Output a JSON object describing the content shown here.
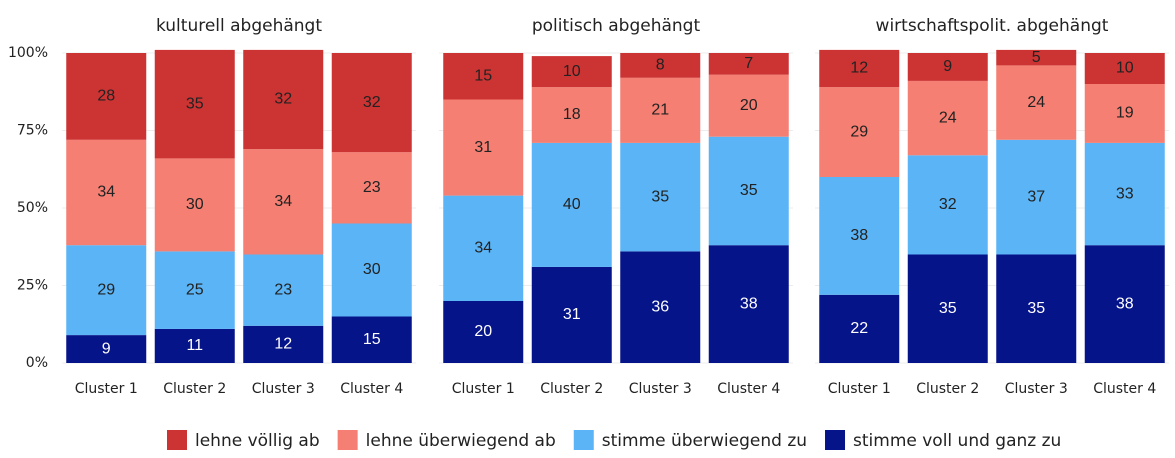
{
  "chart_data": {
    "type": "bar",
    "stacked": true,
    "grid": true,
    "ylim": [
      0,
      100
    ],
    "yticks": [
      {
        "value": 0,
        "label": "0%"
      },
      {
        "value": 25,
        "label": "25%"
      },
      {
        "value": 50,
        "label": "50%"
      },
      {
        "value": 75,
        "label": "75%"
      },
      {
        "value": 100,
        "label": "100%"
      }
    ],
    "legend": [
      {
        "name": "lehne völlig ab",
        "color": "#cc3333"
      },
      {
        "name": "lehne überwiegend ab",
        "color": "#f47f72"
      },
      {
        "name": "stimme überwiegend zu",
        "color": "#5ab4f5"
      },
      {
        "name": "stimme voll und ganz zu",
        "color": "#06148a"
      }
    ],
    "panels": [
      {
        "title": "kulturell abgehängt",
        "categories": [
          "Cluster 1",
          "Cluster 2",
          "Cluster 3",
          "Cluster 4"
        ],
        "series": [
          {
            "values": [
              28,
              35,
              32,
              32
            ]
          },
          {
            "values": [
              34,
              30,
              34,
              23
            ]
          },
          {
            "values": [
              29,
              25,
              23,
              30
            ]
          },
          {
            "values": [
              9,
              11,
              12,
              15
            ]
          }
        ]
      },
      {
        "title": "politisch abgehängt",
        "categories": [
          "Cluster 1",
          "Cluster 2",
          "Cluster 3",
          "Cluster 4"
        ],
        "series": [
          {
            "values": [
              15,
              10,
              8,
              7
            ]
          },
          {
            "values": [
              31,
              18,
              21,
              20
            ]
          },
          {
            "values": [
              34,
              40,
              35,
              35
            ]
          },
          {
            "values": [
              20,
              31,
              36,
              38
            ]
          }
        ]
      },
      {
        "title": "wirtschaftspolit. abgehängt",
        "categories": [
          "Cluster 1",
          "Cluster 2",
          "Cluster 3",
          "Cluster 4"
        ],
        "series": [
          {
            "values": [
              12,
              9,
              5,
              10
            ]
          },
          {
            "values": [
              29,
              24,
              24,
              19
            ]
          },
          {
            "values": [
              38,
              32,
              37,
              33
            ]
          },
          {
            "values": [
              22,
              35,
              35,
              38
            ]
          }
        ]
      }
    ]
  }
}
